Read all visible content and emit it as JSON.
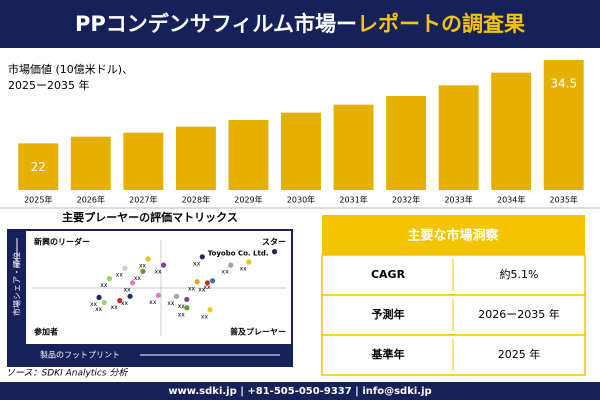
{
  "header": {
    "title_main": "PPコンデンサフィルム市場ー",
    "title_accent": "レポートの調査果"
  },
  "chart_data": [
    {
      "type": "bar",
      "title": "市場価値 (10億米ドル)、",
      "subtitle": "2025ー2035 年",
      "categories": [
        "2025年",
        "2026年",
        "2027年",
        "2028年",
        "2029年",
        "2030年",
        "2031年",
        "2032年",
        "2033年",
        "2034年",
        "2035年"
      ],
      "values": [
        22,
        23.0,
        23.6,
        24.5,
        25.5,
        26.6,
        27.8,
        29.1,
        30.7,
        32.6,
        34.5
      ],
      "value_labels": [
        "22",
        null,
        null,
        null,
        null,
        null,
        null,
        null,
        null,
        null,
        "34.5"
      ],
      "color": "#e6b000",
      "ylim": [
        15,
        36
      ]
    },
    {
      "type": "scatter",
      "title": "主要プレーヤーの評価マトリックス",
      "quadrants": [
        "新興のリーダー",
        "スター",
        "参加者",
        "普及プレーヤー"
      ],
      "ylabel": "市場シェア・順位",
      "xlabel": "製品のフットプリント",
      "xlim": [
        0,
        100
      ],
      "ylim": [
        0,
        100
      ],
      "points": [
        {
          "x": 94,
          "y": 85,
          "label": "Toyobo Co. Ltd.",
          "color": "#1c2a5c"
        },
        {
          "x": 84,
          "y": 75,
          "label": "xx",
          "color": "#f5c400"
        },
        {
          "x": 77,
          "y": 72,
          "label": "xx",
          "color": "#a0a0a0"
        },
        {
          "x": 66,
          "y": 80,
          "label": "xx",
          "color": "#1c2a5c"
        },
        {
          "x": 45,
          "y": 78,
          "label": "xx",
          "color": "#f5c400"
        },
        {
          "x": 51,
          "y": 72,
          "label": "xx",
          "color": "#7b3f9e"
        },
        {
          "x": 43,
          "y": 66,
          "label": "xx",
          "color": "#5aa02c"
        },
        {
          "x": 36,
          "y": 69,
          "label": "xx",
          "color": "#cccccc"
        },
        {
          "x": 39,
          "y": 55,
          "label": "xx",
          "color": "#e377c2"
        },
        {
          "x": 30,
          "y": 59,
          "label": "xx",
          "color": "#9bd06b"
        },
        {
          "x": 64,
          "y": 56,
          "label": "xx",
          "color": "#f39c12"
        },
        {
          "x": 68,
          "y": 55,
          "label": "xx",
          "color": "#d62728"
        },
        {
          "x": 70,
          "y": 57,
          "label": "xx",
          "color": "#1f77b4"
        },
        {
          "x": 49,
          "y": 43,
          "label": "xx",
          "color": "#e377c2"
        },
        {
          "x": 34,
          "y": 38,
          "label": "xx",
          "color": "#d62728"
        },
        {
          "x": 38,
          "y": 42,
          "label": "xx",
          "color": "#1c2a5c"
        },
        {
          "x": 26,
          "y": 41,
          "label": "xx",
          "color": "#1c2a5c"
        },
        {
          "x": 28,
          "y": 36,
          "label": "xx",
          "color": "#9bd06b"
        },
        {
          "x": 56,
          "y": 42,
          "label": "xx",
          "color": "#a0a0a0"
        },
        {
          "x": 60,
          "y": 39,
          "label": "xx",
          "color": "#7b3f9e"
        },
        {
          "x": 60,
          "y": 31,
          "label": "xx",
          "color": "#5aa02c"
        },
        {
          "x": 69,
          "y": 29,
          "label": "xx",
          "color": "#f5c400"
        }
      ]
    }
  ],
  "insights": {
    "title": "主要な市場洞察",
    "rows": [
      [
        "CAGR",
        "約5.1%"
      ],
      [
        "予測年",
        "2026ー2035 年"
      ],
      [
        "基準年",
        "2025 年"
      ]
    ]
  },
  "source": "ソース：SDKI Analytics 分析",
  "footer": "www.sdki.jp | +81-505-050-9337 | info@sdki.jp"
}
